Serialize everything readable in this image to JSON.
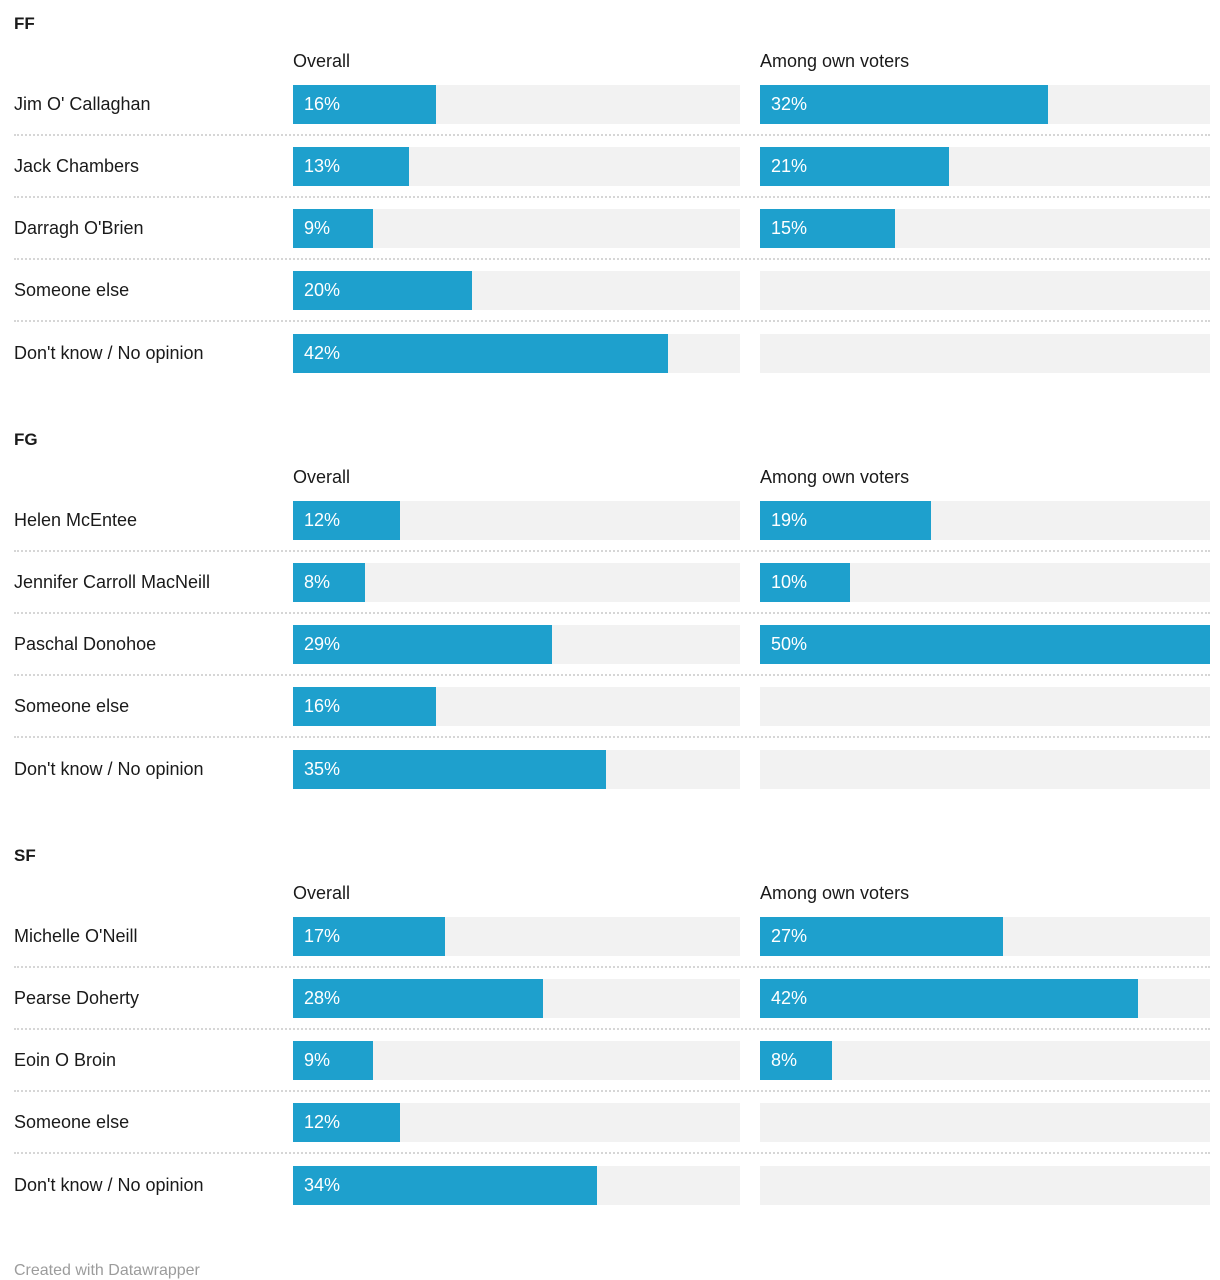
{
  "footer": "Created with Datawrapper",
  "columns": {
    "overall": "Overall",
    "own": "Among own voters"
  },
  "colors": {
    "bar": "#1ea0cd",
    "track": "#f2f2f2",
    "label": "#1a1a1a",
    "separator": "#d6d6d6",
    "footer_text": "#9c9c9c"
  },
  "scale_max": 50,
  "value_suffix": "%",
  "sections": [
    {
      "title": "FF",
      "rows": [
        {
          "label": "Jim O' Callaghan",
          "overall": 16,
          "own": 32
        },
        {
          "label": "Jack Chambers",
          "overall": 13,
          "own": 21
        },
        {
          "label": "Darragh O'Brien",
          "overall": 9,
          "own": 15
        },
        {
          "label": "Someone else",
          "overall": 20,
          "own": null
        },
        {
          "label": "Don't know / No opinion",
          "overall": 42,
          "own": null
        }
      ]
    },
    {
      "title": "FG",
      "rows": [
        {
          "label": "Helen McEntee",
          "overall": 12,
          "own": 19
        },
        {
          "label": "Jennifer Carroll MacNeill",
          "overall": 8,
          "own": 10
        },
        {
          "label": "Paschal Donohoe",
          "overall": 29,
          "own": 50
        },
        {
          "label": "Someone else",
          "overall": 16,
          "own": null
        },
        {
          "label": "Don't know / No opinion",
          "overall": 35,
          "own": null
        }
      ]
    },
    {
      "title": "SF",
      "rows": [
        {
          "label": "Michelle O'Neill",
          "overall": 17,
          "own": 27
        },
        {
          "label": "Pearse Doherty",
          "overall": 28,
          "own": 42
        },
        {
          "label": "Eoin O Broin",
          "overall": 9,
          "own": 8
        },
        {
          "label": "Someone else",
          "overall": 12,
          "own": null
        },
        {
          "label": "Don't know / No opinion",
          "overall": 34,
          "own": null
        }
      ]
    }
  ],
  "chart_data": [
    {
      "type": "bar",
      "title": "FF",
      "orientation": "horizontal",
      "categories": [
        "Jim O' Callaghan",
        "Jack Chambers",
        "Darragh O'Brien",
        "Someone else",
        "Don't know / No opinion"
      ],
      "series": [
        {
          "name": "Overall",
          "values": [
            16,
            13,
            9,
            20,
            42
          ]
        },
        {
          "name": "Among own voters",
          "values": [
            32,
            21,
            15,
            null,
            null
          ]
        }
      ],
      "xlim": [
        0,
        50
      ],
      "value_suffix": "%",
      "grid": false,
      "legend_position": "column-headers"
    },
    {
      "type": "bar",
      "title": "FG",
      "orientation": "horizontal",
      "categories": [
        "Helen McEntee",
        "Jennifer Carroll MacNeill",
        "Paschal Donohoe",
        "Someone else",
        "Don't know / No opinion"
      ],
      "series": [
        {
          "name": "Overall",
          "values": [
            12,
            8,
            29,
            16,
            35
          ]
        },
        {
          "name": "Among own voters",
          "values": [
            19,
            10,
            50,
            null,
            null
          ]
        }
      ],
      "xlim": [
        0,
        50
      ],
      "value_suffix": "%",
      "grid": false,
      "legend_position": "column-headers"
    },
    {
      "type": "bar",
      "title": "SF",
      "orientation": "horizontal",
      "categories": [
        "Michelle O'Neill",
        "Pearse Doherty",
        "Eoin O Broin",
        "Someone else",
        "Don't know / No opinion"
      ],
      "series": [
        {
          "name": "Overall",
          "values": [
            17,
            28,
            9,
            12,
            34
          ]
        },
        {
          "name": "Among own voters",
          "values": [
            27,
            42,
            8,
            null,
            null
          ]
        }
      ],
      "xlim": [
        0,
        50
      ],
      "value_suffix": "%",
      "grid": false,
      "legend_position": "column-headers"
    }
  ]
}
